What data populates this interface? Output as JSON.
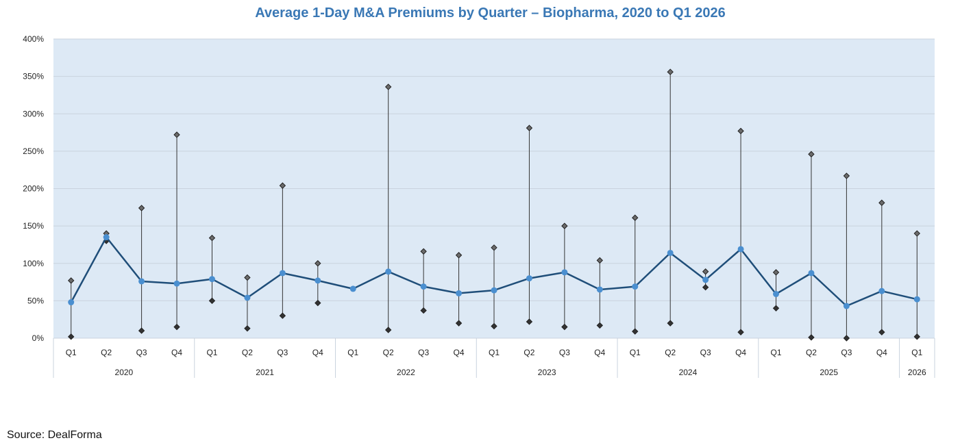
{
  "chart_data": {
    "type": "line",
    "title": "Average 1-Day M&A Premiums by Quarter – Biopharma, 2020 to Q1 2026",
    "y_ticks": [
      "0%",
      "50%",
      "100%",
      "150%",
      "200%",
      "250%",
      "300%",
      "350%",
      "400%"
    ],
    "ylim": [
      0,
      400
    ],
    "grid": true,
    "colors": {
      "plot_bg": "#dde9f5",
      "line": "#1f4e79",
      "marker": "#4a8fd0",
      "range": "#333333"
    },
    "years": [
      {
        "label": "2020",
        "quarters": 4
      },
      {
        "label": "2021",
        "quarters": 4
      },
      {
        "label": "2022",
        "quarters": 4
      },
      {
        "label": "2023",
        "quarters": 4
      },
      {
        "label": "2024",
        "quarters": 4
      },
      {
        "label": "2025",
        "quarters": 4
      },
      {
        "label": "2026",
        "quarters": 1
      }
    ],
    "categories": [
      "Q1",
      "Q2",
      "Q3",
      "Q4",
      "Q1",
      "Q2",
      "Q3",
      "Q4",
      "Q1",
      "Q2",
      "Q3",
      "Q4",
      "Q1",
      "Q2",
      "Q3",
      "Q4",
      "Q1",
      "Q2",
      "Q3",
      "Q4",
      "Q1",
      "Q2",
      "Q3",
      "Q4",
      "Q1"
    ],
    "series": [
      {
        "values": [
          48,
          135,
          76,
          73,
          79,
          54,
          87,
          77,
          66,
          89,
          69,
          60,
          64,
          80,
          88,
          65,
          69,
          114,
          78,
          119,
          59,
          87,
          43,
          63,
          52
        ]
      },
      {
        "values": [
          77,
          140,
          174,
          272,
          134,
          81,
          204,
          100,
          null,
          336,
          116,
          111,
          121,
          281,
          150,
          104,
          161,
          356,
          89,
          277,
          88,
          246,
          217,
          181,
          140
        ]
      },
      {
        "values": [
          2,
          130,
          10,
          15,
          50,
          13,
          30,
          47,
          null,
          11,
          37,
          20,
          16,
          22,
          15,
          17,
          9,
          20,
          68,
          8,
          40,
          1,
          0,
          8,
          2
        ]
      }
    ]
  },
  "source": "Source: DealForma"
}
